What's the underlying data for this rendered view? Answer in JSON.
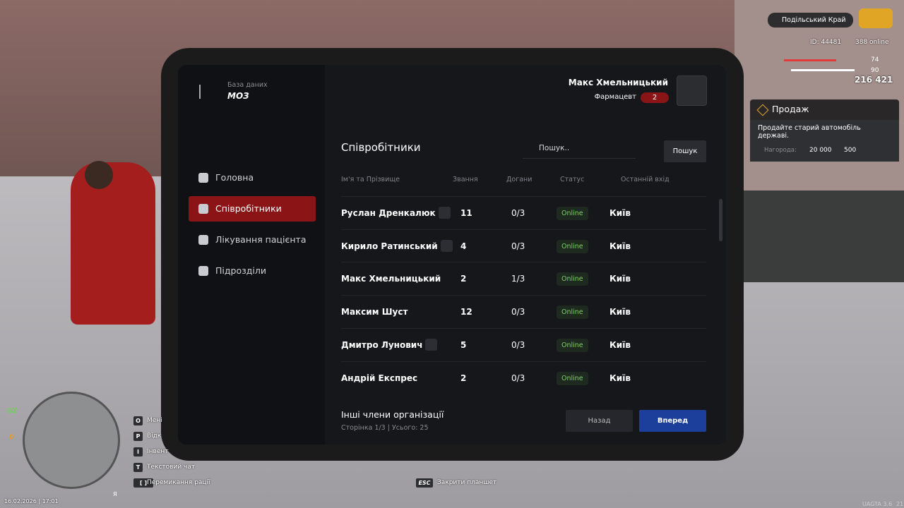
{
  "hud": {
    "server": "Подільський Край",
    "id": "ID: 44481",
    "online": "388 online",
    "health": 74,
    "armor": 90,
    "money": "216 421"
  },
  "quest": {
    "title": "Продаж",
    "text": "Продайте старий автомобіль державі.",
    "reward_label": "Нагорода:",
    "money": "20 000",
    "xp": "500"
  },
  "tablet": {
    "db_label": "База даних",
    "org": "МОЗ",
    "user": {
      "name": "Макс Хмельницький",
      "role": "Фармацевт",
      "rank": "2"
    },
    "nav": [
      "Головна",
      "Співробітники",
      "Лікування пацієнта",
      "Підрозділи"
    ],
    "active_nav": 1,
    "section_title": "Співробітники",
    "search_placeholder": "Пошук..",
    "search_button": "Пошук",
    "columns": [
      "Ім'я та Прізвище",
      "Звання",
      "Догани",
      "Статус",
      "Останній вхід"
    ],
    "rows": [
      {
        "name": "Руслан Дренкалюк",
        "icon": true,
        "rank": 11,
        "reprimands": "0/3",
        "status": "Online",
        "last": "Київ"
      },
      {
        "name": "Кирило Ратинський",
        "icon": true,
        "rank": 4,
        "reprimands": "0/3",
        "status": "Online",
        "last": "Київ"
      },
      {
        "name": "Макс Хмельницький",
        "icon": false,
        "rank": 2,
        "reprimands": "1/3",
        "status": "Online",
        "last": "Київ"
      },
      {
        "name": "Максим Шуст",
        "icon": false,
        "rank": 12,
        "reprimands": "0/3",
        "status": "Online",
        "last": "Київ"
      },
      {
        "name": "Дмитро Лунович",
        "icon": true,
        "rank": 5,
        "reprimands": "0/3",
        "status": "Online",
        "last": "Київ"
      },
      {
        "name": "Андрій Експрес",
        "icon": false,
        "rank": 2,
        "reprimands": "0/3",
        "status": "Online",
        "last": "Київ"
      }
    ],
    "footer_title": "Інші члени організації",
    "page_info": "Сторінка 1/3 | Усього: 25",
    "prev": "Назад",
    "next": "Вперед"
  },
  "keys": [
    {
      "key": "O",
      "label": "Мені"
    },
    {
      "key": "P",
      "label": "Відк"
    },
    {
      "key": "I",
      "label": "Інвент"
    },
    {
      "key": "T",
      "label": "Текстовий чат"
    },
    {
      "key": "[ ]",
      "label": "Перемикання рації"
    }
  ],
  "bottom": {
    "esc": "ESC",
    "esc_label": "Закрити планшет",
    "datetime": "16.02.2026 | 17:01",
    "gz": "GZ",
    "wanted": "0",
    "voice": "Я",
    "version": "UAGTA 3.6",
    "fps": "21"
  }
}
